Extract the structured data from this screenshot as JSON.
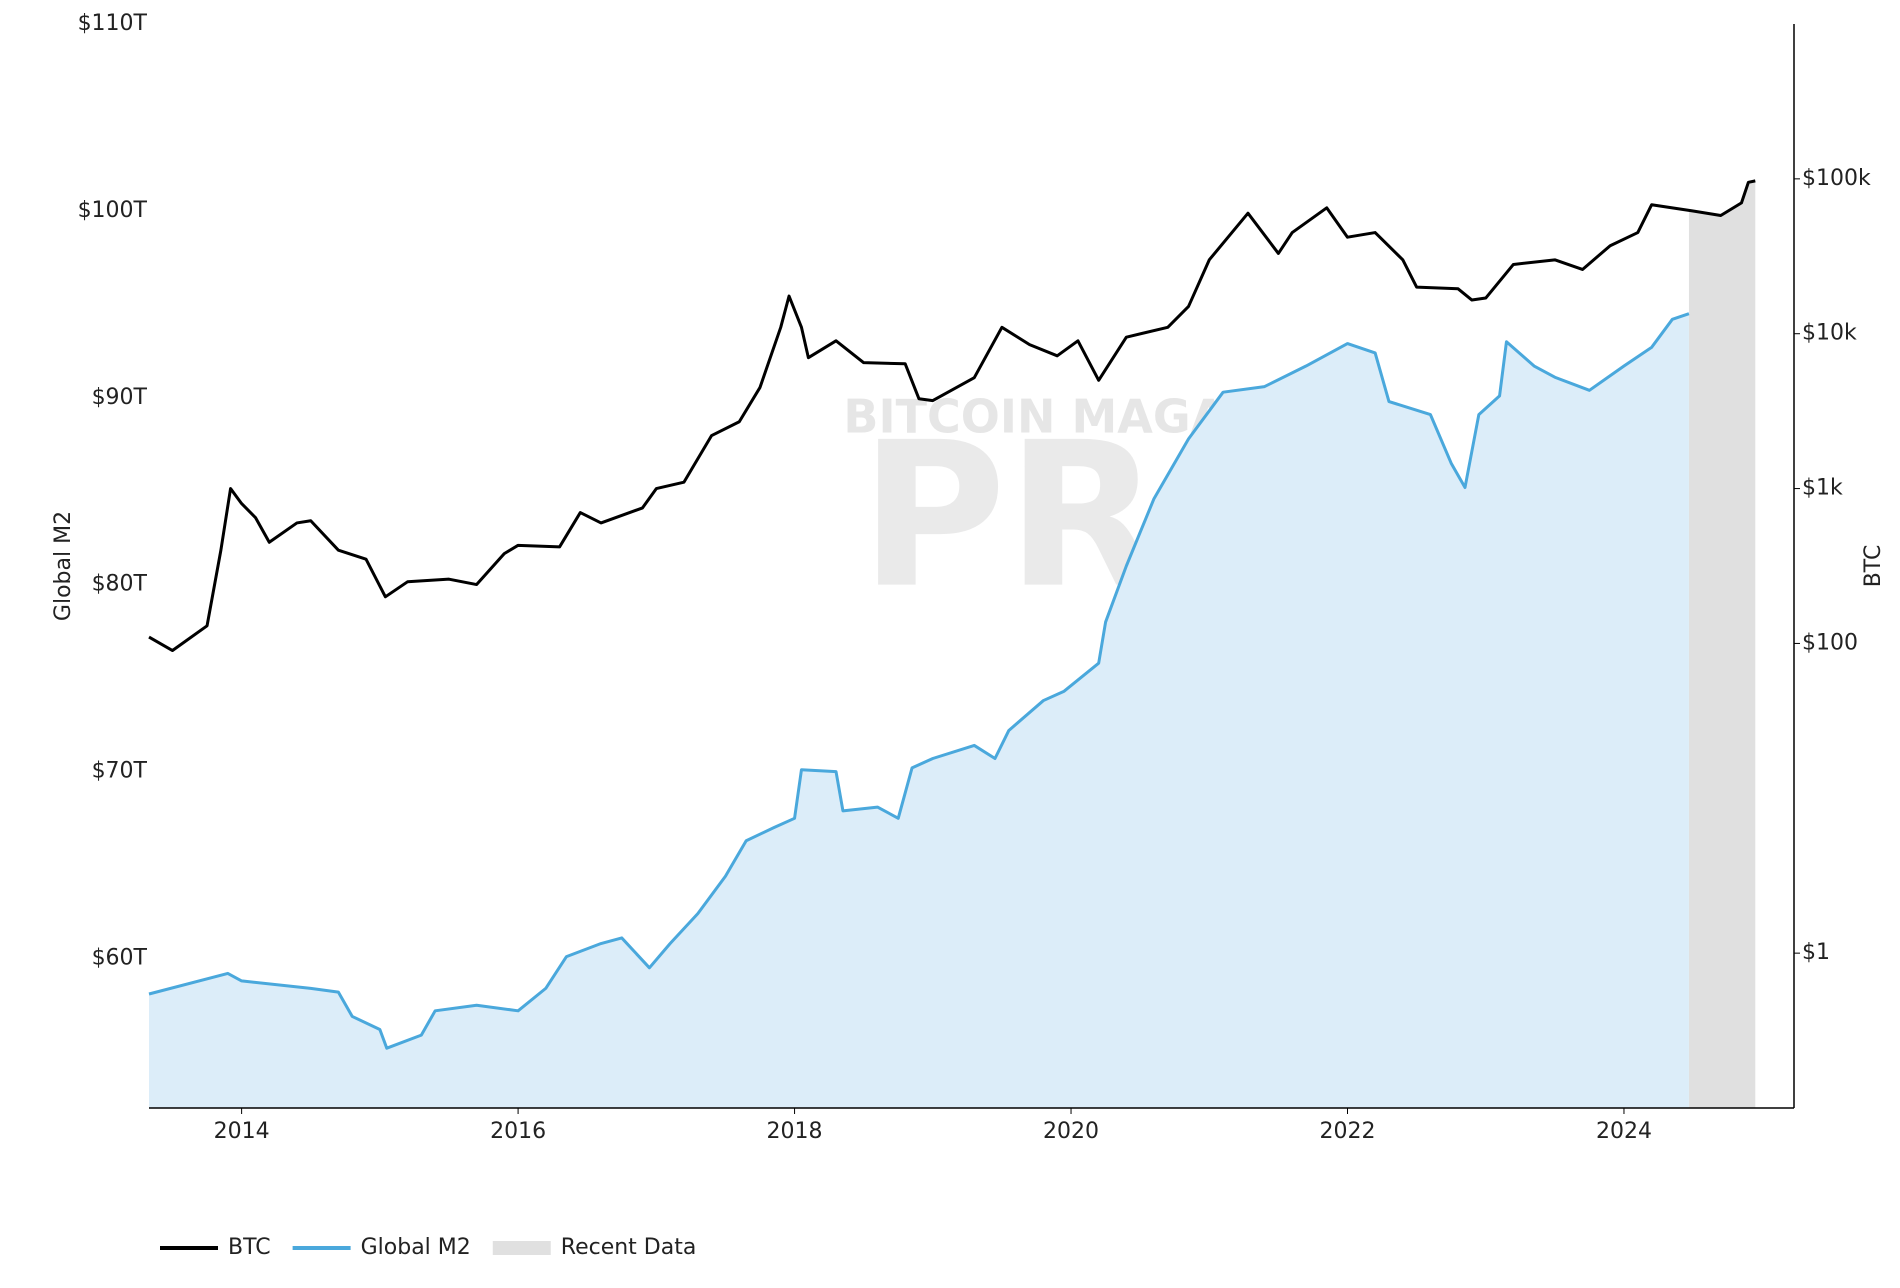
{
  "chart_data": {
    "type": "line",
    "y_label": "Global M2",
    "y2_label": "BTC",
    "xlim": [
      2013.33,
      2025.23
    ],
    "xticks": [
      2014,
      2016,
      2018,
      2020,
      2022,
      2024
    ],
    "ylim": [
      52,
      110
    ],
    "yticks": [
      {
        "value": 60,
        "label": "$60T"
      },
      {
        "value": 70,
        "label": "$70T"
      },
      {
        "value": 80,
        "label": "$80T"
      },
      {
        "value": 90,
        "label": "$90T"
      },
      {
        "value": 100,
        "label": "$100T"
      },
      {
        "value": 110,
        "label": "$110T"
      }
    ],
    "y2lim": [
      0.1,
      1000000
    ],
    "y2_log": true,
    "y2ticks": [
      {
        "value": 1,
        "label": "$1"
      },
      {
        "value": 100,
        "label": "$100"
      },
      {
        "value": 1000,
        "label": "$1k"
      },
      {
        "value": 10000,
        "label": "$10k"
      },
      {
        "value": 100000,
        "label": "$100k"
      }
    ],
    "series": [
      {
        "name": "BTC",
        "color": "#000000",
        "axis": "y2",
        "x": [
          2013.33,
          2013.5,
          2013.75,
          2013.85,
          2013.92,
          2014.0,
          2014.1,
          2014.2,
          2014.4,
          2014.5,
          2014.7,
          2014.9,
          2015.04,
          2015.2,
          2015.5,
          2015.7,
          2015.9,
          2016.0,
          2016.3,
          2016.45,
          2016.6,
          2016.9,
          2017.0,
          2017.2,
          2017.4,
          2017.6,
          2017.75,
          2017.9,
          2017.96,
          2018.05,
          2018.1,
          2018.3,
          2018.5,
          2018.8,
          2018.9,
          2019.0,
          2019.3,
          2019.5,
          2019.7,
          2019.9,
          2020.05,
          2020.2,
          2020.4,
          2020.7,
          2020.85,
          2021.0,
          2021.28,
          2021.5,
          2021.6,
          2021.85,
          2022.0,
          2022.2,
          2022.4,
          2022.5,
          2022.8,
          2022.9,
          2023.0,
          2023.2,
          2023.5,
          2023.7,
          2023.9,
          2024.1,
          2024.2,
          2024.5,
          2024.7,
          2024.85,
          2024.9,
          2024.95
        ],
        "values": [
          110,
          90,
          130,
          400,
          1000,
          800,
          650,
          450,
          600,
          620,
          400,
          350,
          200,
          250,
          260,
          240,
          380,
          430,
          420,
          700,
          600,
          750,
          1000,
          1100,
          2200,
          2700,
          4500,
          11000,
          17500,
          11000,
          7000,
          9000,
          6500,
          6400,
          3800,
          3700,
          5200,
          11000,
          8500,
          7200,
          9000,
          5000,
          9500,
          11000,
          15000,
          30000,
          60000,
          33000,
          45000,
          65000,
          42000,
          45000,
          30000,
          20000,
          19500,
          16500,
          17000,
          28000,
          30000,
          26000,
          37000,
          45000,
          68000,
          62000,
          58000,
          70000,
          95000,
          97000
        ]
      },
      {
        "name": "Global M2",
        "color": "#4aa8dc",
        "fill": "#dcedf9",
        "x": [
          2013.33,
          2013.9,
          2014.0,
          2014.5,
          2014.7,
          2014.8,
          2015.0,
          2015.05,
          2015.3,
          2015.4,
          2015.7,
          2016.0,
          2016.2,
          2016.35,
          2016.6,
          2016.75,
          2016.95,
          2017.1,
          2017.3,
          2017.5,
          2017.65,
          2017.85,
          2018.0,
          2018.05,
          2018.3,
          2018.35,
          2018.6,
          2018.75,
          2018.85,
          2019.0,
          2019.3,
          2019.45,
          2019.55,
          2019.8,
          2019.95,
          2020.2,
          2020.25,
          2020.4,
          2020.6,
          2020.85,
          2021.1,
          2021.4,
          2021.7,
          2022.0,
          2022.2,
          2022.3,
          2022.6,
          2022.75,
          2022.85,
          2022.95,
          2023.1,
          2023.15,
          2023.35,
          2023.5,
          2023.75,
          2024.0,
          2024.2,
          2024.35,
          2024.47
        ],
        "values": [
          58.1,
          59.2,
          58.8,
          58.4,
          58.2,
          56.9,
          56.2,
          55.2,
          55.9,
          57.2,
          57.5,
          57.2,
          58.4,
          60.1,
          60.8,
          61.1,
          59.5,
          60.8,
          62.4,
          64.4,
          66.3,
          67.0,
          67.5,
          70.1,
          70.0,
          67.9,
          68.1,
          67.5,
          70.2,
          70.7,
          71.4,
          70.7,
          72.2,
          73.8,
          74.3,
          75.8,
          78.0,
          81.0,
          84.6,
          87.8,
          90.3,
          90.6,
          91.7,
          92.9,
          92.4,
          89.8,
          89.1,
          86.5,
          85.2,
          89.1,
          90.1,
          93.0,
          91.7,
          91.1,
          90.4,
          91.7,
          92.7,
          94.2,
          94.5
        ]
      }
    ],
    "recent_data": {
      "name": "Recent Data",
      "color": "#e0e0e0",
      "x_range": [
        2024.47,
        2024.95
      ]
    },
    "legend": "bottom-left",
    "watermark": [
      "BITCOIN MAGAZINE",
      "PRO"
    ]
  }
}
